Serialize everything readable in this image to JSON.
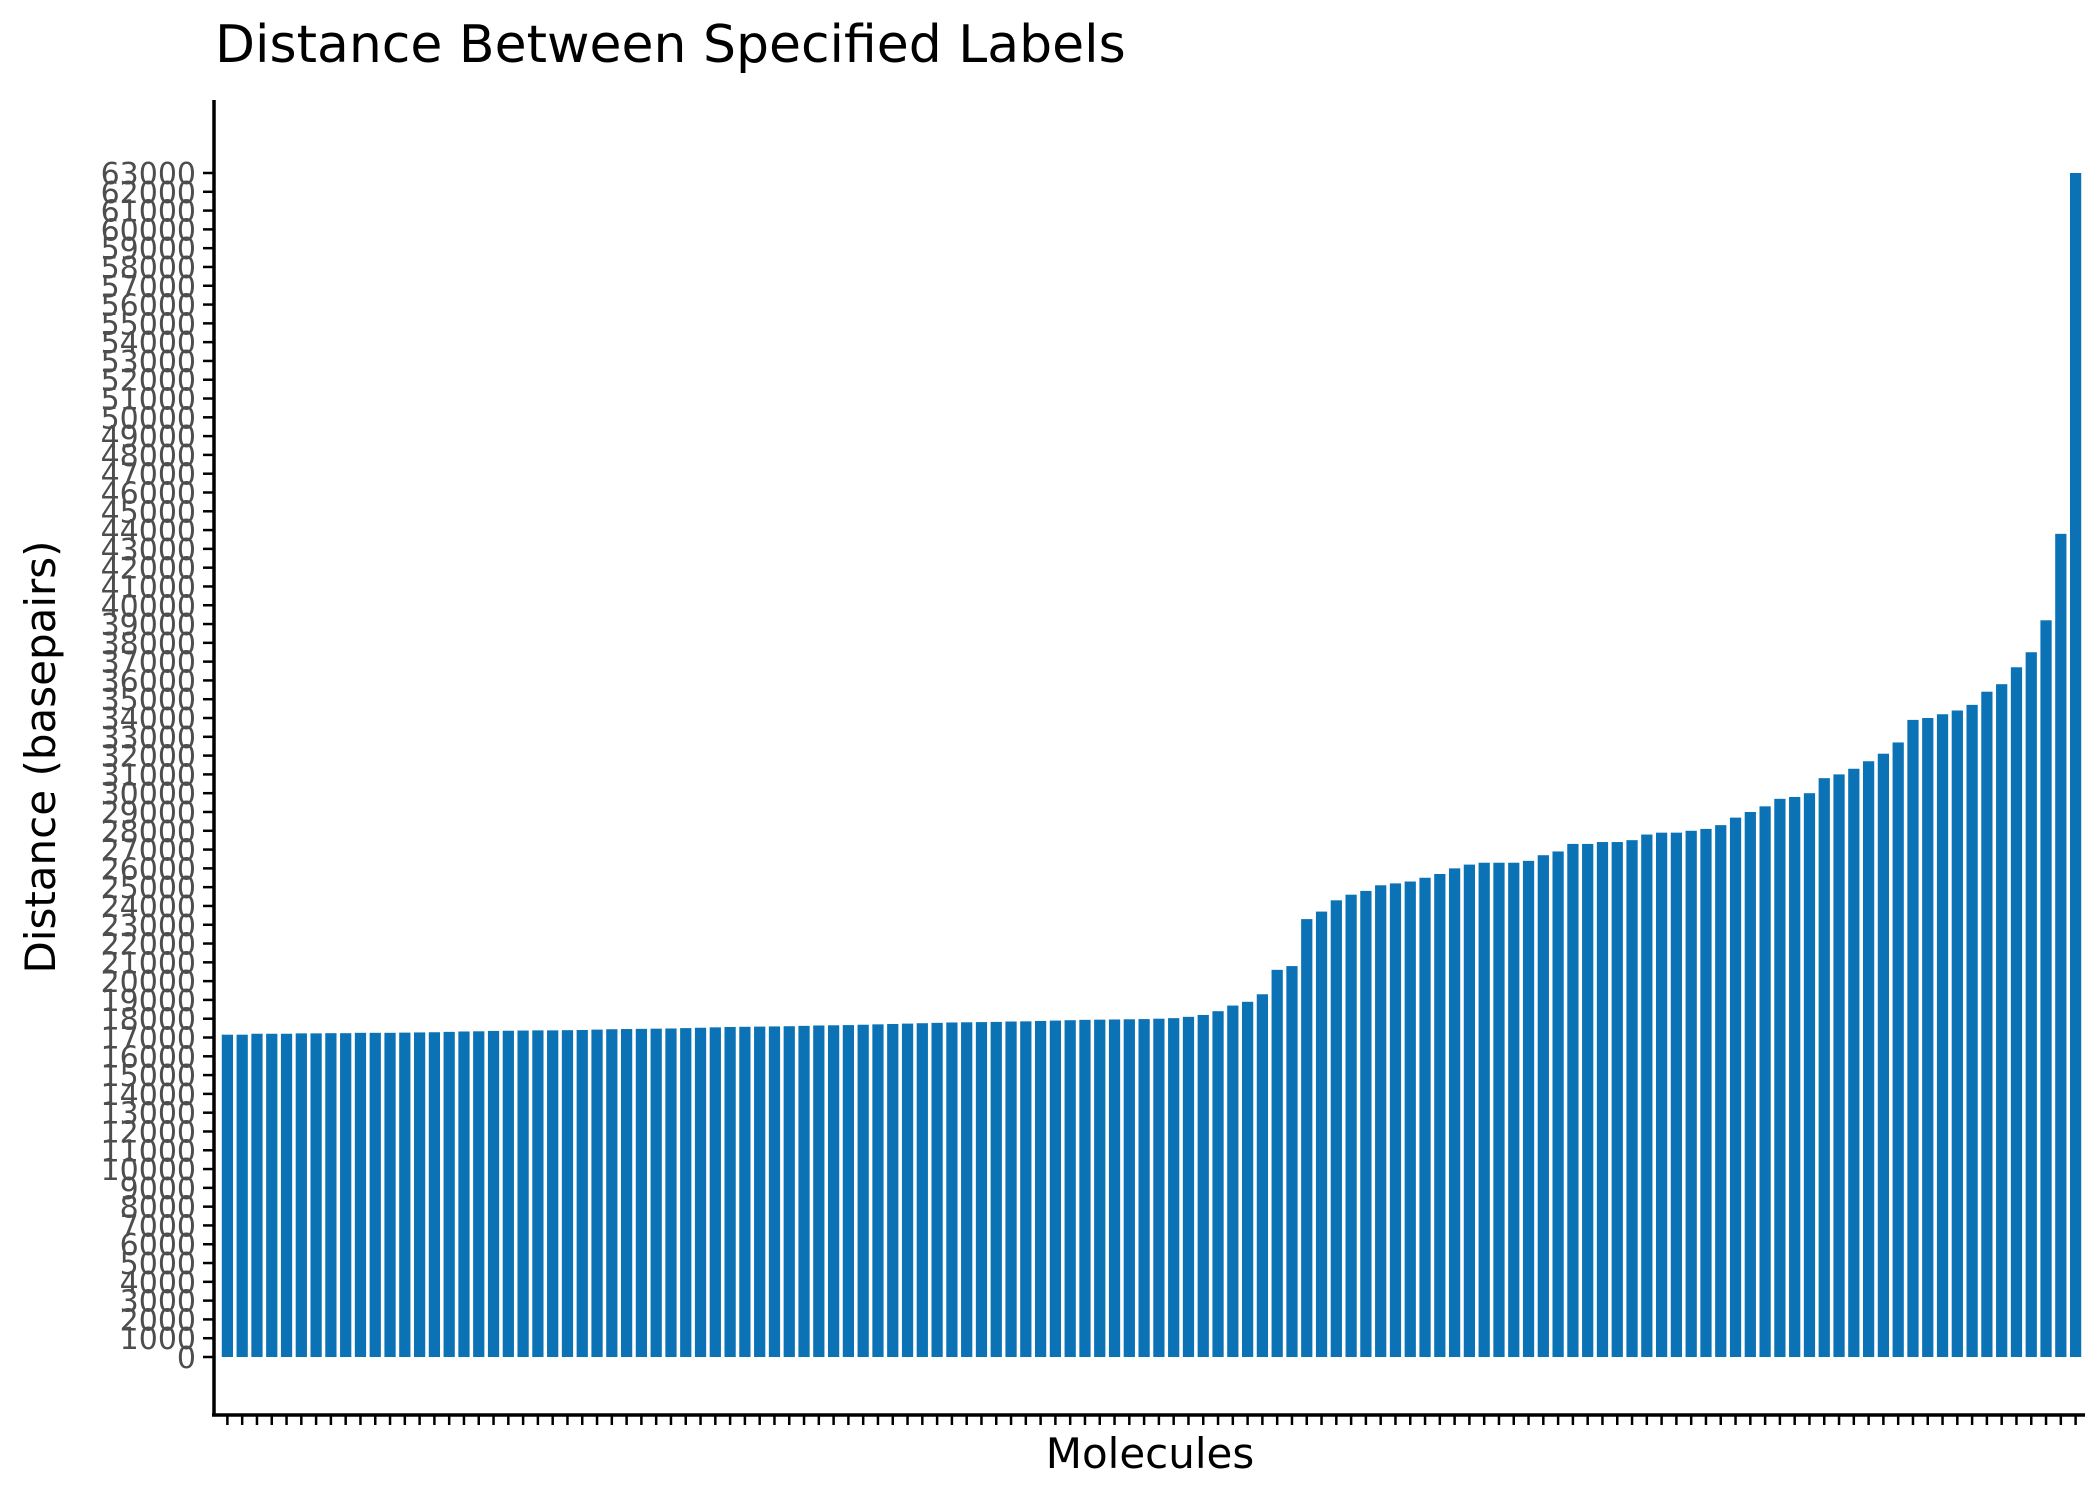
{
  "chart_data": {
    "type": "bar",
    "title": "Distance Between Specified Labels",
    "xlabel": "Molecules",
    "ylabel": "Distance (basepairs)",
    "ylim": [
      0,
      63000
    ],
    "ytick_step": 1000,
    "grid": false,
    "legend": "none",
    "bar_color": "#0a72b5",
    "series": [
      {
        "values": [
          17150,
          17150,
          17200,
          17200,
          17200,
          17220,
          17220,
          17230,
          17230,
          17250,
          17250,
          17250,
          17260,
          17270,
          17280,
          17300,
          17320,
          17330,
          17350,
          17360,
          17370,
          17380,
          17380,
          17390,
          17400,
          17420,
          17440,
          17450,
          17460,
          17470,
          17480,
          17500,
          17520,
          17540,
          17560,
          17570,
          17580,
          17590,
          17600,
          17620,
          17640,
          17650,
          17660,
          17680,
          17700,
          17720,
          17740,
          17760,
          17780,
          17800,
          17810,
          17820,
          17830,
          17850,
          17860,
          17880,
          17900,
          17920,
          17940,
          17950,
          17960,
          17970,
          17980,
          18000,
          18030,
          18100,
          18200,
          18400,
          18700,
          18900,
          19300,
          20600,
          20800,
          23300,
          23700,
          24300,
          24600,
          24800,
          25100,
          25200,
          25300,
          25500,
          25700,
          26000,
          26200,
          26300,
          26300,
          26300,
          26400,
          26700,
          26900,
          27300,
          27300,
          27400,
          27400,
          27500,
          27800,
          27900,
          27900,
          28000,
          28100,
          28300,
          28700,
          29000,
          29300,
          29700,
          29800,
          30000,
          30800,
          31000,
          31300,
          31700,
          32100,
          32700,
          33900,
          34000,
          34200,
          34400,
          34700,
          35400,
          35800,
          36700,
          37500,
          39200,
          43800,
          63000
        ]
      }
    ]
  }
}
